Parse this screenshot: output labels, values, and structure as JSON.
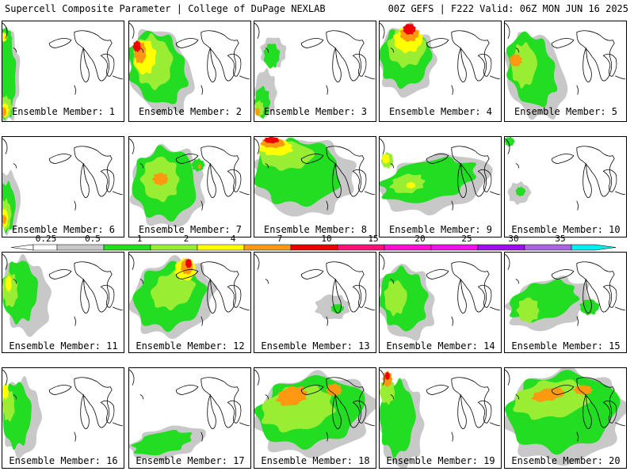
{
  "header": {
    "left": "Supercell Composite Parameter | College of DuPage NEXLAB",
    "right": "00Z GEFS | F222 Valid: 06Z MON JUN 16 2025"
  },
  "colorbar": {
    "bins": [
      {
        "label": "0.25",
        "color": "#c8c8c8"
      },
      {
        "label": "0.5",
        "color": "#22dd22"
      },
      {
        "label": "1",
        "color": "#99ee33"
      },
      {
        "label": "2",
        "color": "#ffff00"
      },
      {
        "label": "4",
        "color": "#ff9911"
      },
      {
        "label": "7",
        "color": "#ee0000"
      },
      {
        "label": "10",
        "color": "#ff1177"
      },
      {
        "label": "15",
        "color": "#ff11cc"
      },
      {
        "label": "20",
        "color": "#ee11ee"
      },
      {
        "label": "25",
        "color": "#9911ee"
      },
      {
        "label": "30",
        "color": "#aa66dd"
      },
      {
        "label": "35",
        "color": "#00eeee"
      }
    ]
  },
  "members": [
    {
      "label": "Ensemble Member: 1"
    },
    {
      "label": "Ensemble Member: 2"
    },
    {
      "label": "Ensemble Member: 3"
    },
    {
      "label": "Ensemble Member: 4"
    },
    {
      "label": "Ensemble Member: 5"
    },
    {
      "label": "Ensemble Member: 6"
    },
    {
      "label": "Ensemble Member: 7"
    },
    {
      "label": "Ensemble Member: 8"
    },
    {
      "label": "Ensemble Member: 9"
    },
    {
      "label": "Ensemble Member: 10"
    },
    {
      "label": "Ensemble Member: 11"
    },
    {
      "label": "Ensemble Member: 12"
    },
    {
      "label": "Ensemble Member: 13"
    },
    {
      "label": "Ensemble Member: 14"
    },
    {
      "label": "Ensemble Member: 15"
    },
    {
      "label": "Ensemble Member: 16"
    },
    {
      "label": "Ensemble Member: 17"
    },
    {
      "label": "Ensemble Member: 18"
    },
    {
      "label": "Ensemble Member: 19"
    },
    {
      "label": "Ensemble Member: 20"
    }
  ]
}
